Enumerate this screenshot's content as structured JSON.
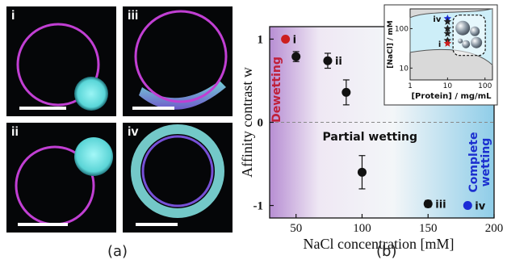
{
  "panel_a": {
    "caption": "(a)",
    "micrographs": [
      {
        "label": "i"
      },
      {
        "label": "iii"
      },
      {
        "label": "ii"
      },
      {
        "label": "iv"
      }
    ]
  },
  "panel_b": {
    "caption": "(b)"
  },
  "chart_data": [
    {
      "type": "scatter",
      "xlabel": "NaCl concentration [mM]",
      "ylabel": "Affinity contrast w",
      "xlim": [
        30,
        200
      ],
      "ylim": [
        -1.15,
        1.15
      ],
      "xticks": [
        "50",
        "100",
        "150",
        "200"
      ],
      "yticks": [
        "-1",
        "0",
        "1"
      ],
      "grid": false,
      "region_labels": {
        "left": "Dewetting",
        "middle": "Partial wetting",
        "right_line1": "Complete",
        "right_line2": "wetting"
      },
      "series": [
        {
          "points": [
            {
              "x": 50,
              "y": 0.79,
              "err": 0.06
            },
            {
              "x": 74,
              "y": 0.74,
              "err": 0.09
            },
            {
              "x": 88,
              "y": 0.36,
              "err": 0.15
            },
            {
              "x": 100,
              "y": -0.6,
              "err": 0.2
            },
            {
              "x": 150,
              "y": -0.98,
              "err": 0.04
            }
          ]
        },
        {
          "points": [
            {
              "x": 42,
              "y": 1.0
            }
          ],
          "color": "#cc1f1f"
        },
        {
          "points": [
            {
              "x": 180,
              "y": -1.0
            }
          ],
          "color": "#1a2bd6"
        }
      ],
      "point_labels": [
        {
          "text": "i",
          "x": 42,
          "y": 1.0
        },
        {
          "text": "ii",
          "x": 74,
          "y": 0.74
        },
        {
          "text": "iii",
          "x": 150,
          "y": -0.98
        },
        {
          "text": "iv",
          "x": 180,
          "y": -1.0
        }
      ],
      "colors": {
        "marker": "#111111",
        "dewet_bg": "#b78ed3",
        "wet_bg": "#8fcde8",
        "dewet_text": "#c0203a",
        "wet_text": "#1b2fcf"
      }
    },
    {
      "type": "scatter",
      "xlabel": "[Protein] / mg/mL",
      "ylabel": "[NaCl] / mM",
      "xscale": "log",
      "yscale": "log",
      "xticks": [
        "1",
        "10",
        "100"
      ],
      "yticks": [
        "10",
        "100"
      ],
      "point_labels": [
        {
          "text": "iv",
          "x": 10,
          "y": 180
        },
        {
          "text": "i",
          "x": 10,
          "y": 42
        }
      ],
      "series": [
        {
          "points": [
            {
              "x": 10,
              "y": 180
            }
          ],
          "color": "#1a2bd6",
          "marker": "star"
        },
        {
          "points": [
            {
              "x": 10,
              "y": 150
            },
            {
              "x": 10,
              "y": 100
            },
            {
              "x": 10,
              "y": 75
            },
            {
              "x": 10,
              "y": 50
            }
          ],
          "color": "#222222",
          "marker": "star"
        },
        {
          "points": [
            {
              "x": 10,
              "y": 42
            }
          ],
          "color": "#cc1f1f",
          "marker": "star"
        }
      ],
      "colors": {
        "phase_fill": "#cdeef8",
        "outside_fill": "#d9d9d9"
      }
    }
  ]
}
